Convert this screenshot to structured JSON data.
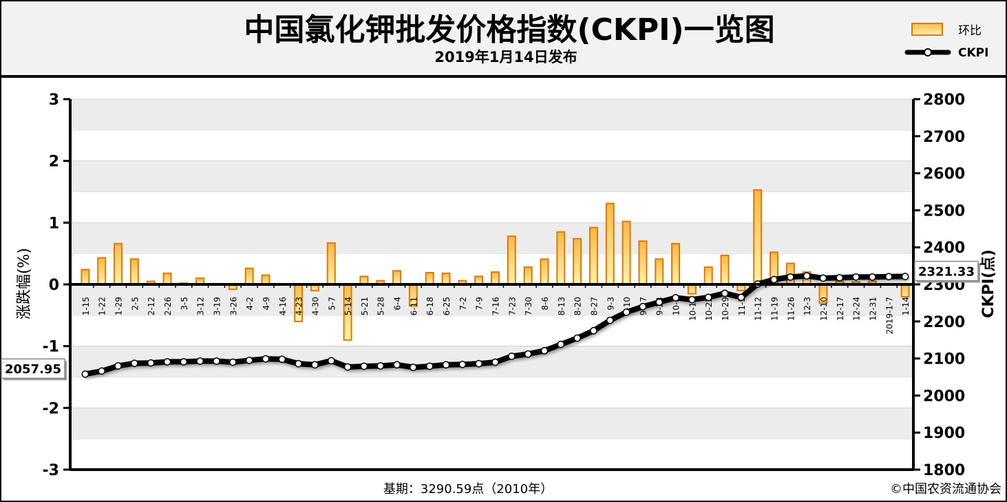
{
  "header": {
    "title": "中国氯化钾批发价格指数(CKPI)一览图",
    "subtitle": "2019年1月14日发布"
  },
  "footer": {
    "base_period": "基期：3290.59点（2010年）",
    "copyright": "©中国农资流通协会"
  },
  "colors": {
    "bar_fill_top": "#f5b84a",
    "bar_fill_bottom": "#fff3b0",
    "bar_border": "#e07800",
    "line": "#000000",
    "band": "#ececec",
    "frame": "#000000"
  },
  "chart_data": {
    "type": "bar",
    "title": "中国氯化钾批发价格指数(CKPI)一览图",
    "subtitle": "2019年1月14日发布",
    "legend": {
      "placement": "top-right",
      "entries": [
        "环比",
        "CKPI"
      ]
    },
    "grid": "horizontal alternating bands",
    "y_left": {
      "label": "涨跌幅(%)",
      "range": [
        -3,
        3
      ],
      "ticks": [
        3,
        2,
        1,
        0,
        -1,
        -2,
        -3
      ]
    },
    "y_right": {
      "label": "CKPI(点)",
      "range": [
        1800,
        2800
      ],
      "ticks": [
        2800,
        2700,
        2600,
        2500,
        2400,
        2300,
        2200,
        2100,
        2000,
        1900,
        1800
      ]
    },
    "categories": [
      "1-15",
      "1-22",
      "1-29",
      "2-5",
      "2-12",
      "2-26",
      "3-5",
      "3-12",
      "3-19",
      "3-26",
      "4-2",
      "4-9",
      "4-16",
      "4-23",
      "4-30",
      "5-7",
      "5-14",
      "5-21",
      "5-28",
      "6-4",
      "6-11",
      "6-18",
      "6-25",
      "7-2",
      "7-9",
      "7-16",
      "7-23",
      "7-30",
      "8-6",
      "8-13",
      "8-20",
      "8-27",
      "9-3",
      "9-10",
      "9-17",
      "9-24",
      "10-8",
      "10-15",
      "10-22",
      "10-29",
      "11-5",
      "11-12",
      "11-19",
      "11-26",
      "12-3",
      "12-10",
      "12-17",
      "12-24",
      "12-31",
      "2019-1-7",
      "1-14"
    ],
    "series": [
      {
        "name": "环比",
        "type": "bar",
        "axis": "left",
        "values": [
          0.24,
          0.43,
          0.66,
          0.41,
          0.05,
          0.18,
          0.02,
          0.1,
          0.0,
          -0.08,
          0.26,
          0.15,
          0.0,
          -0.6,
          -0.1,
          0.67,
          -0.9,
          0.13,
          0.06,
          0.22,
          -0.35,
          0.19,
          0.18,
          0.06,
          0.13,
          0.2,
          0.78,
          0.28,
          0.41,
          0.85,
          0.74,
          0.92,
          1.31,
          1.02,
          0.7,
          0.41,
          0.66,
          -0.15,
          0.28,
          0.47,
          -0.1,
          1.53,
          0.52,
          0.34,
          0.2,
          -0.3,
          0.05,
          0.04,
          0.05,
          0.0,
          -0.2
        ]
      },
      {
        "name": "CKPI",
        "type": "line",
        "axis": "right",
        "values": [
          2057.95,
          2066,
          2080,
          2087,
          2088,
          2091,
          2091,
          2093,
          2093,
          2090,
          2095,
          2099,
          2098,
          2086,
          2083,
          2094,
          2077,
          2079,
          2080,
          2083,
          2076,
          2079,
          2083,
          2084,
          2086,
          2090,
          2106,
          2112,
          2121,
          2138,
          2155,
          2175,
          2203,
          2225,
          2240,
          2252,
          2264,
          2259,
          2265,
          2276,
          2265,
          2301,
          2313,
          2320,
          2323,
          2317,
          2318,
          2320,
          2320,
          2321,
          2321.33
        ]
      }
    ],
    "annotations": [
      {
        "text": "2057.95",
        "series": "CKPI",
        "index": 0,
        "side": "left"
      },
      {
        "text": "2321.33",
        "series": "CKPI",
        "index": 50,
        "side": "right"
      }
    ]
  }
}
